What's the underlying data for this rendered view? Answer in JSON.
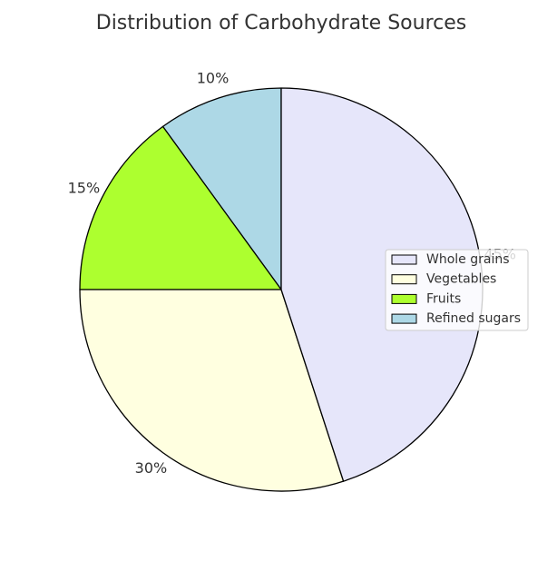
{
  "chart_data": {
    "type": "pie",
    "title": "Distribution of Carbohydrate Sources",
    "categories": [
      "Whole grains",
      "Vegetables",
      "Fruits",
      "Refined sugars"
    ],
    "values": [
      45,
      30,
      15,
      10
    ],
    "value_labels": [
      "45%",
      "30%",
      "15%",
      "10%"
    ],
    "colors": [
      "#e6e6fa",
      "#ffffe0",
      "#adff2f",
      "#add8e6"
    ],
    "start_angle_deg": 90,
    "direction": "counterclockwise",
    "edge_color": "#000000",
    "legend_position": "center-right"
  }
}
